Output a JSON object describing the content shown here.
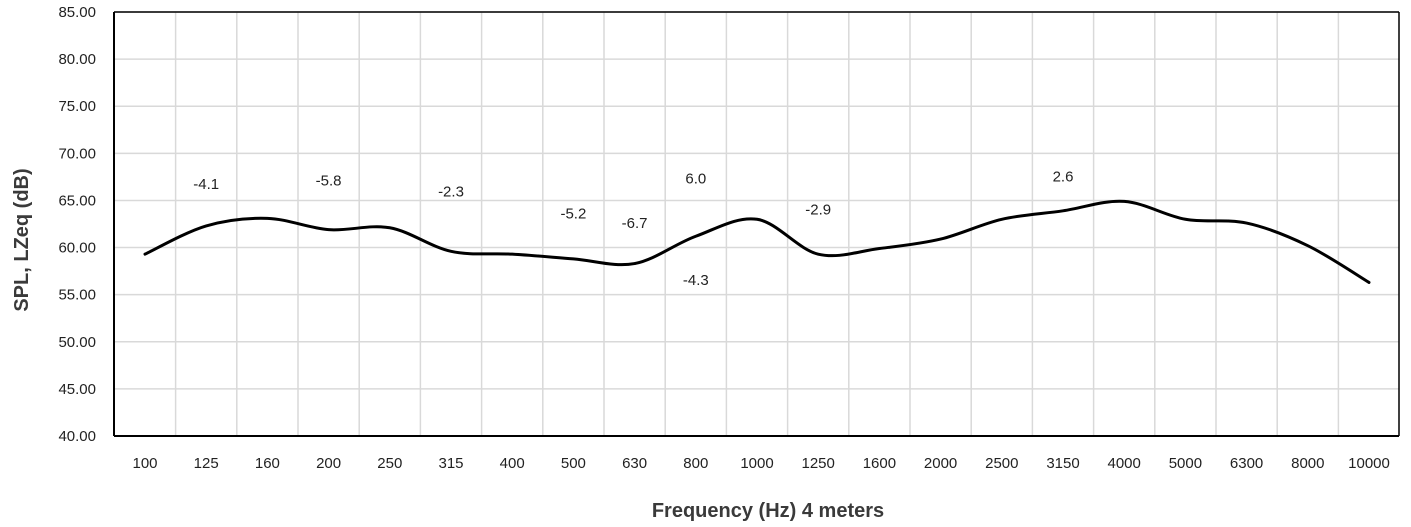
{
  "chart_data": {
    "type": "line",
    "title": "",
    "xlabel": "Frequency (Hz) 4 meters",
    "ylabel": "SPL, LZeq (dB)",
    "ylim": [
      40,
      85
    ],
    "yticks": [
      "40.00",
      "45.00",
      "50.00",
      "55.00",
      "60.00",
      "65.00",
      "70.00",
      "75.00",
      "80.00",
      "85.00"
    ],
    "categories": [
      "100",
      "125",
      "160",
      "200",
      "250",
      "315",
      "400",
      "500",
      "630",
      "800",
      "1000",
      "1250",
      "1600",
      "2000",
      "2500",
      "3150",
      "4000",
      "5000",
      "6300",
      "8000",
      "10000"
    ],
    "series": [
      {
        "values": [
          59.3,
          62.3,
          63.1,
          61.9,
          62.1,
          59.6,
          59.3,
          58.8,
          58.3,
          61.2,
          63.0,
          59.3,
          59.9,
          60.9,
          63.0,
          63.9,
          64.9,
          63.0,
          62.6,
          60.2,
          56.3
        ],
        "color": "#000000"
      }
    ],
    "annotations": [
      {
        "text": "-4.1",
        "x": "125",
        "y": 66.2
      },
      {
        "text": "-5.8",
        "x": "200",
        "y": 66.6
      },
      {
        "text": "-2.3",
        "x": "315",
        "y": 65.4
      },
      {
        "text": "-5.2",
        "x": "500",
        "y": 63.1
      },
      {
        "text": "-6.7",
        "x": "630",
        "y": 62.1
      },
      {
        "text": "-4.3",
        "x": "800",
        "y": 56.0
      },
      {
        "text": "6.0",
        "x": "800",
        "y": 66.8
      },
      {
        "text": "-2.9",
        "x": "1250",
        "y": 63.5
      },
      {
        "text": "2.6",
        "x": "3150",
        "y": 67.0
      }
    ],
    "grid": true,
    "legend": "none"
  },
  "colors": {
    "line": "#000000",
    "grid": "#d9d9d9",
    "axis": "#000000"
  }
}
